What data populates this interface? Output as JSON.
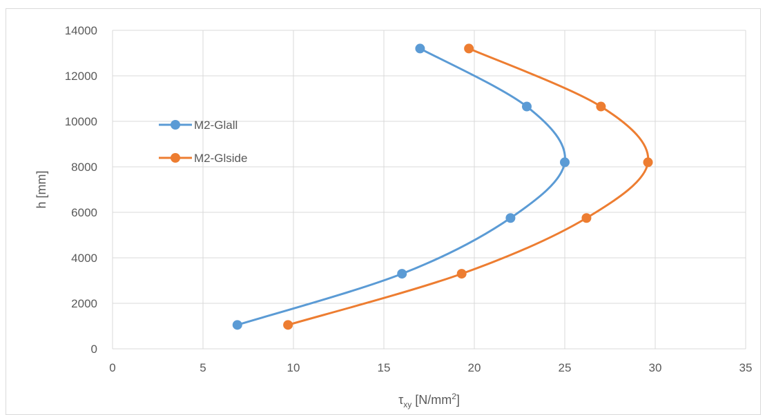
{
  "chart_data": {
    "type": "scatter",
    "title": "",
    "xlabel": "τxy [N/mm²]",
    "xlabel_parts": {
      "base": "τ",
      "sub": "xy",
      "unit": " [N/mm",
      "sup": "2",
      "close": "]"
    },
    "ylabel": "h [mm]",
    "xlim": [
      0,
      35
    ],
    "ylim": [
      0,
      14000
    ],
    "x_ticks": [
      0,
      5,
      10,
      15,
      20,
      25,
      30,
      35
    ],
    "y_ticks": [
      0,
      2000,
      4000,
      6000,
      8000,
      10000,
      12000,
      14000
    ],
    "x_tick_labels": [
      "0",
      "5",
      "10",
      "15",
      "20",
      "25",
      "30",
      "35"
    ],
    "y_tick_labels": [
      "0",
      "2000",
      "4000",
      "6000",
      "8000",
      "10000",
      "12000",
      "14000"
    ],
    "grid": true,
    "legend_position": "left",
    "smooth_lines": true,
    "series": [
      {
        "name": "M2-Glall",
        "color": "#5b9bd5",
        "x": [
          6.9,
          16.0,
          22.0,
          25.0,
          22.9,
          17.0
        ],
        "y": [
          1050,
          3300,
          5750,
          8200,
          10650,
          13200
        ]
      },
      {
        "name": "M2-Glside",
        "color": "#ed7d31",
        "x": [
          9.7,
          19.3,
          26.2,
          29.6,
          27.0,
          19.7
        ],
        "y": [
          1050,
          3300,
          5750,
          8200,
          10650,
          13200
        ]
      }
    ]
  }
}
